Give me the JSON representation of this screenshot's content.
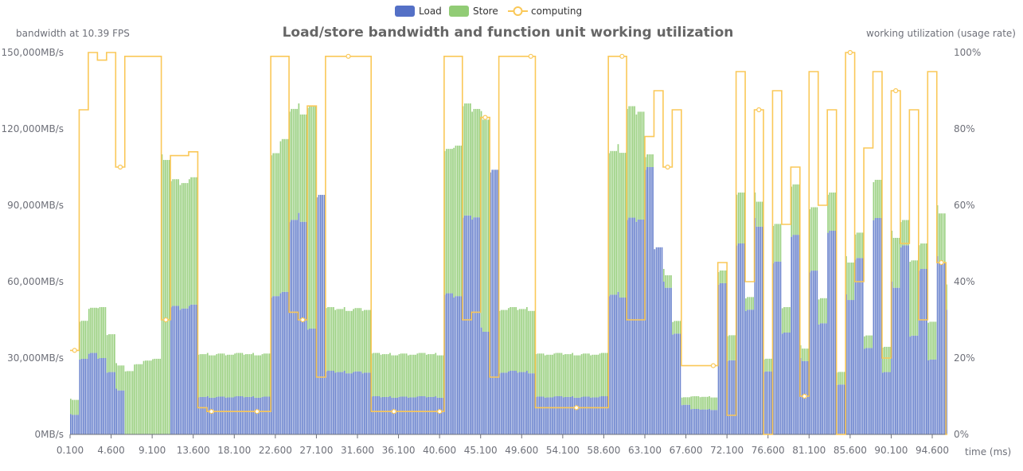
{
  "chart_data": {
    "type": "bar+line",
    "title": "Load/store bandwidth and function unit working utilization",
    "xlabel": "time (ms)",
    "ylabel_left": "bandwidth at 10.39 FPS",
    "ylabel_right": "working utilization (usage rate)",
    "legend": {
      "position": "top-center",
      "items": [
        "Load",
        "Store",
        "computing"
      ]
    },
    "colors": {
      "Load": "#5470c6",
      "Store": "#91cc75",
      "computing": "#fac858"
    },
    "grid": false,
    "stacked": true,
    "xlim": [
      0.1,
      96.1
    ],
    "x_tick_labels": [
      "0.100",
      "4.600",
      "9.100",
      "13.600",
      "18.100",
      "22.600",
      "27.100",
      "31.600",
      "36.100",
      "40.600",
      "45.100",
      "49.600",
      "54.100",
      "58.600",
      "63.100",
      "67.600",
      "72.100",
      "76.600",
      "81.100",
      "85.600",
      "90.100",
      "94.600"
    ],
    "y_left": {
      "ylim": [
        0,
        150000
      ],
      "tick_labels": [
        "0MB/s",
        "30,000MB/s",
        "60,000MB/s",
        "90,000MB/s",
        "120,000MB/s",
        "150,000MB/s"
      ]
    },
    "y_right": {
      "ylim": [
        0,
        100
      ],
      "tick_labels": [
        "0%",
        "20%",
        "40%",
        "60%",
        "80%",
        "100%"
      ]
    },
    "x": [
      0.1,
      1.1,
      2.1,
      3.1,
      4.1,
      5.1,
      6.1,
      7.1,
      8.1,
      9.1,
      10.1,
      11.1,
      12.1,
      13.1,
      14.1,
      15.1,
      16.1,
      17.1,
      18.1,
      19.1,
      20.1,
      21.1,
      22.1,
      23.1,
      24.1,
      25.1,
      26.1,
      27.1,
      28.1,
      29.1,
      30.1,
      31.1,
      32.1,
      33.1,
      34.1,
      35.1,
      36.1,
      37.1,
      38.1,
      39.1,
      40.1,
      41.1,
      42.1,
      43.1,
      44.1,
      45.1,
      46.1,
      47.1,
      48.1,
      49.1,
      50.1,
      51.1,
      52.1,
      53.1,
      54.1,
      55.1,
      56.1,
      57.1,
      58.1,
      59.1,
      60.1,
      61.1,
      62.1,
      63.1,
      64.1,
      65.1,
      66.1,
      67.1,
      68.1,
      69.1,
      70.1,
      71.1,
      72.1,
      73.1,
      74.1,
      75.1,
      76.1,
      77.1,
      78.1,
      79.1,
      80.1,
      81.1,
      82.1,
      83.1,
      84.1,
      85.1,
      86.1,
      87.1,
      88.1,
      89.1,
      90.1,
      91.1,
      92.1,
      93.1,
      94.1,
      95.1,
      96.1
    ],
    "series": [
      {
        "name": "Load",
        "type": "bar",
        "axis": "left",
        "values": [
          8000,
          30000,
          33000,
          30000,
          25000,
          18000,
          0,
          0,
          0,
          0,
          0,
          51000,
          51000,
          51000,
          15000,
          15000,
          15000,
          15000,
          15000,
          15000,
          15000,
          15000,
          56000,
          56000,
          86000,
          87000,
          42000,
          97000,
          25000,
          25000,
          25000,
          25000,
          25000,
          15000,
          15000,
          15000,
          15000,
          15000,
          15000,
          15000,
          15000,
          56000,
          56000,
          86000,
          87000,
          42000,
          105000,
          25000,
          25000,
          25000,
          25000,
          15000,
          15000,
          15000,
          15000,
          15000,
          15000,
          15000,
          15000,
          56000,
          56000,
          86000,
          87000,
          105000,
          75000,
          60000,
          40000,
          12000,
          10000,
          10000,
          10000,
          60000,
          30000,
          75000,
          50000,
          85000,
          25000,
          70000,
          40000,
          80000,
          30000,
          65000,
          45000,
          80000,
          20000,
          55000,
          70000,
          35000,
          85000,
          25000,
          60000,
          75000,
          40000,
          65000,
          30000,
          70000,
          50000
        ]
      },
      {
        "name": "Store",
        "type": "bar",
        "axis": "left",
        "values": [
          6000,
          15000,
          18000,
          20000,
          15000,
          10000,
          25000,
          28000,
          29000,
          30000,
          110000,
          50000,
          50000,
          50000,
          17000,
          17000,
          17000,
          17000,
          17000,
          17000,
          17000,
          17000,
          57000,
          60000,
          44000,
          43000,
          88000,
          0,
          25000,
          25000,
          25000,
          25000,
          25000,
          17000,
          17000,
          17000,
          17000,
          17000,
          17000,
          17000,
          17000,
          57000,
          60000,
          44000,
          43000,
          85000,
          0,
          25000,
          25000,
          25000,
          25000,
          17000,
          17000,
          17000,
          17000,
          17000,
          17000,
          17000,
          17000,
          57000,
          58000,
          44000,
          43000,
          5000,
          0,
          5000,
          5000,
          3000,
          5000,
          5000,
          5000,
          5000,
          10000,
          20000,
          5000,
          10000,
          5000,
          15000,
          10000,
          20000,
          5000,
          25000,
          10000,
          15000,
          5000,
          15000,
          10000,
          5000,
          15000,
          10000,
          20000,
          10000,
          30000,
          10000,
          15000,
          20000,
          10000
        ]
      },
      {
        "name": "computing",
        "type": "line",
        "axis": "right",
        "values": [
          22,
          85,
          100,
          98,
          100,
          70,
          99,
          99,
          99,
          99,
          30,
          73,
          73,
          74,
          7,
          6,
          6,
          6,
          6,
          6,
          6,
          6,
          99,
          99,
          32,
          30,
          86,
          15,
          99,
          99,
          99,
          99,
          99,
          6,
          6,
          6,
          6,
          6,
          6,
          6,
          6,
          99,
          99,
          30,
          32,
          83,
          15,
          99,
          99,
          99,
          99,
          7,
          7,
          7,
          7,
          7,
          7,
          7,
          7,
          99,
          99,
          30,
          30,
          78,
          90,
          70,
          85,
          18,
          18,
          18,
          18,
          45,
          5,
          95,
          40,
          85,
          0,
          90,
          55,
          70,
          10,
          95,
          60,
          85,
          0,
          100,
          40,
          75,
          95,
          20,
          90,
          50,
          85,
          30,
          95,
          45,
          0
        ]
      }
    ]
  }
}
